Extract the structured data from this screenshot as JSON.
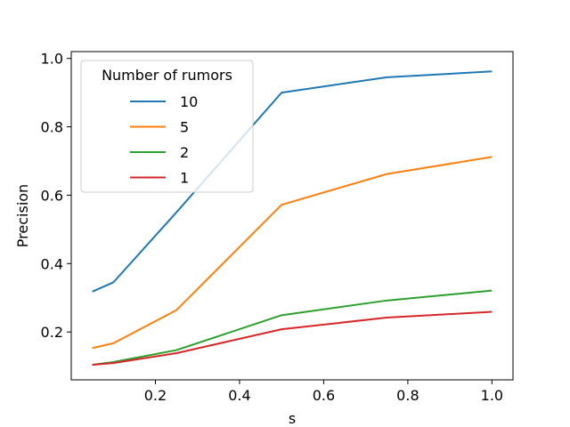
{
  "chart_data": {
    "type": "line",
    "title": "",
    "xlabel": "s",
    "ylabel": "Precision",
    "xlim": [
      0.0,
      1.05
    ],
    "ylim": [
      0.06,
      1.02
    ],
    "xticks": [
      0.2,
      0.4,
      0.6,
      0.8,
      1.0
    ],
    "xtick_labels": [
      "0.2",
      "0.4",
      "0.6",
      "0.8",
      "1.0"
    ],
    "yticks": [
      0.2,
      0.4,
      0.6,
      0.8,
      1.0
    ],
    "ytick_labels": [
      "0.2",
      "0.4",
      "0.6",
      "0.8",
      "1.0"
    ],
    "grid": false,
    "legend": {
      "title": "Number of rumors",
      "placement": "upper-left"
    },
    "x": [
      0.05,
      0.1,
      0.25,
      0.5,
      0.75,
      1.0
    ],
    "series": [
      {
        "name": "10",
        "color": "#1f77b4",
        "values": [
          0.318,
          0.345,
          0.55,
          0.9,
          0.945,
          0.962
        ]
      },
      {
        "name": "5",
        "color": "#ff7f0e",
        "values": [
          0.153,
          0.167,
          0.264,
          0.572,
          0.662,
          0.712
        ]
      },
      {
        "name": "2",
        "color": "#2ca02c",
        "values": [
          0.104,
          0.112,
          0.147,
          0.249,
          0.292,
          0.321
        ]
      },
      {
        "name": "1",
        "color": "#d62728",
        "values": [
          0.104,
          0.109,
          0.138,
          0.208,
          0.242,
          0.259
        ]
      }
    ]
  }
}
